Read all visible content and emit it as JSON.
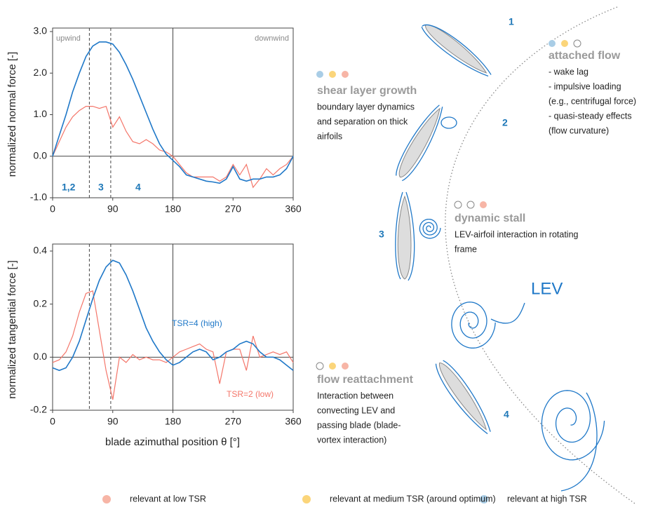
{
  "chart_data": [
    {
      "type": "line",
      "y_label": "normalized normal force [-]",
      "annotations": [
        "upwind",
        "downwind",
        "1,2",
        "3",
        "4"
      ],
      "x": [
        0,
        10,
        20,
        30,
        40,
        50,
        60,
        70,
        80,
        90,
        100,
        110,
        120,
        130,
        140,
        150,
        160,
        170,
        180,
        190,
        200,
        210,
        220,
        230,
        240,
        250,
        260,
        270,
        280,
        290,
        300,
        310,
        320,
        330,
        340,
        350,
        360
      ],
      "series": [
        {
          "color": "#1f78c8",
          "values": [
            0,
            0.5,
            1.0,
            1.55,
            2.0,
            2.4,
            2.65,
            2.75,
            2.75,
            2.7,
            2.5,
            2.2,
            1.85,
            1.45,
            1.05,
            0.65,
            0.3,
            0.05,
            -0.1,
            -0.25,
            -0.45,
            -0.5,
            -0.55,
            -0.6,
            -0.62,
            -0.65,
            -0.55,
            -0.25,
            -0.55,
            -0.6,
            -0.55,
            -0.55,
            -0.5,
            -0.5,
            -0.45,
            -0.3,
            0
          ]
        },
        {
          "color": "#f4766a",
          "values": [
            0,
            0.35,
            0.7,
            0.95,
            1.1,
            1.2,
            1.2,
            1.15,
            1.2,
            0.7,
            0.95,
            0.6,
            0.35,
            0.3,
            0.4,
            0.3,
            0.15,
            0.1,
            0.0,
            -0.2,
            -0.4,
            -0.5,
            -0.5,
            -0.5,
            -0.5,
            -0.6,
            -0.5,
            -0.2,
            -0.45,
            -0.2,
            -0.75,
            -0.55,
            -0.3,
            -0.45,
            -0.3,
            -0.2,
            0
          ]
        }
      ],
      "xlim": [
        0,
        360
      ],
      "xticks": [
        0,
        90,
        180,
        270,
        360
      ],
      "ylim": [
        -1,
        3
      ],
      "yticks": [
        {
          "value": -1,
          "label": "-1.0"
        },
        {
          "value": 0,
          "label": "0.0"
        },
        {
          "value": 1,
          "label": "1.0"
        },
        {
          "value": 2,
          "label": "2.0"
        },
        {
          "value": 3,
          "label": "3.0"
        }
      ],
      "dashed_lines": [
        55,
        87
      ],
      "solid_lines": [
        180
      ]
    },
    {
      "type": "line",
      "y_label": "normalized tangential force [-]",
      "x_label": "blade azimuthal position θ [°]",
      "x": [
        0,
        10,
        20,
        30,
        40,
        50,
        60,
        70,
        80,
        90,
        100,
        110,
        120,
        130,
        140,
        150,
        160,
        170,
        180,
        190,
        200,
        210,
        220,
        230,
        240,
        250,
        260,
        270,
        280,
        290,
        300,
        310,
        320,
        330,
        340,
        350,
        360
      ],
      "series": [
        {
          "name": "TSR=4 (high)",
          "color": "#1f78c8",
          "values": [
            -0.04,
            -0.05,
            -0.04,
            0.0,
            0.06,
            0.14,
            0.22,
            0.29,
            0.34,
            0.365,
            0.355,
            0.31,
            0.25,
            0.18,
            0.11,
            0.06,
            0.02,
            -0.01,
            -0.03,
            -0.02,
            0.0,
            0.02,
            0.03,
            0.02,
            -0.01,
            0.0,
            0.02,
            0.03,
            0.05,
            0.06,
            0.05,
            0.02,
            0.0,
            0.0,
            -0.01,
            -0.03,
            -0.05
          ]
        },
        {
          "name": "TSR=2 (low)",
          "color": "#f4766a",
          "values": [
            -0.02,
            -0.01,
            0.02,
            0.08,
            0.17,
            0.24,
            0.25,
            0.1,
            -0.05,
            -0.16,
            0.0,
            -0.02,
            0.01,
            -0.01,
            0.0,
            -0.01,
            -0.01,
            -0.02,
            0.0,
            0.02,
            0.03,
            0.04,
            0.05,
            0.03,
            0.02,
            -0.1,
            0.02,
            0.03,
            0.03,
            -0.05,
            0.08,
            0.0,
            0.01,
            0.02,
            0.01,
            0.02,
            -0.02
          ]
        }
      ],
      "xlim": [
        0,
        360
      ],
      "xticks": [
        0,
        90,
        180,
        270,
        360
      ],
      "ylim": [
        -0.2,
        0.4
      ],
      "yticks": [
        {
          "value": -0.2,
          "label": "-0.2"
        },
        {
          "value": 0,
          "label": "0.0"
        },
        {
          "value": 0.2,
          "label": "0.2"
        },
        {
          "value": 0.4,
          "label": "0.4"
        }
      ],
      "dashed_lines": [
        55,
        87
      ],
      "solid_lines": [
        180
      ]
    }
  ],
  "diagram": {
    "positions": [
      "1",
      "2",
      "3",
      "4"
    ],
    "vortex_label": "LEV",
    "phenomena": [
      {
        "title": "attached flow",
        "lines": [
          "- wake lag",
          "- impulsive loading",
          "(e.g., centrifugal force)",
          "- quasi-steady effects",
          "(flow curvature)"
        ]
      },
      {
        "title": "shear layer growth",
        "lines": [
          "boundary layer dynamics",
          "and separation on thick",
          "airfoils"
        ]
      },
      {
        "title": "dynamic stall",
        "lines": [
          "LEV-airfoil interaction in rotating",
          "frame"
        ]
      },
      {
        "title": "flow reattachment",
        "lines": [
          "Interaction between",
          "convecting LEV and",
          "passing blade (blade-",
          "vortex interaction)"
        ]
      }
    ]
  },
  "legend": [
    "relevant at low TSR",
    "relevant at medium TSR (around optimum)",
    "relevant at high TSR"
  ]
}
